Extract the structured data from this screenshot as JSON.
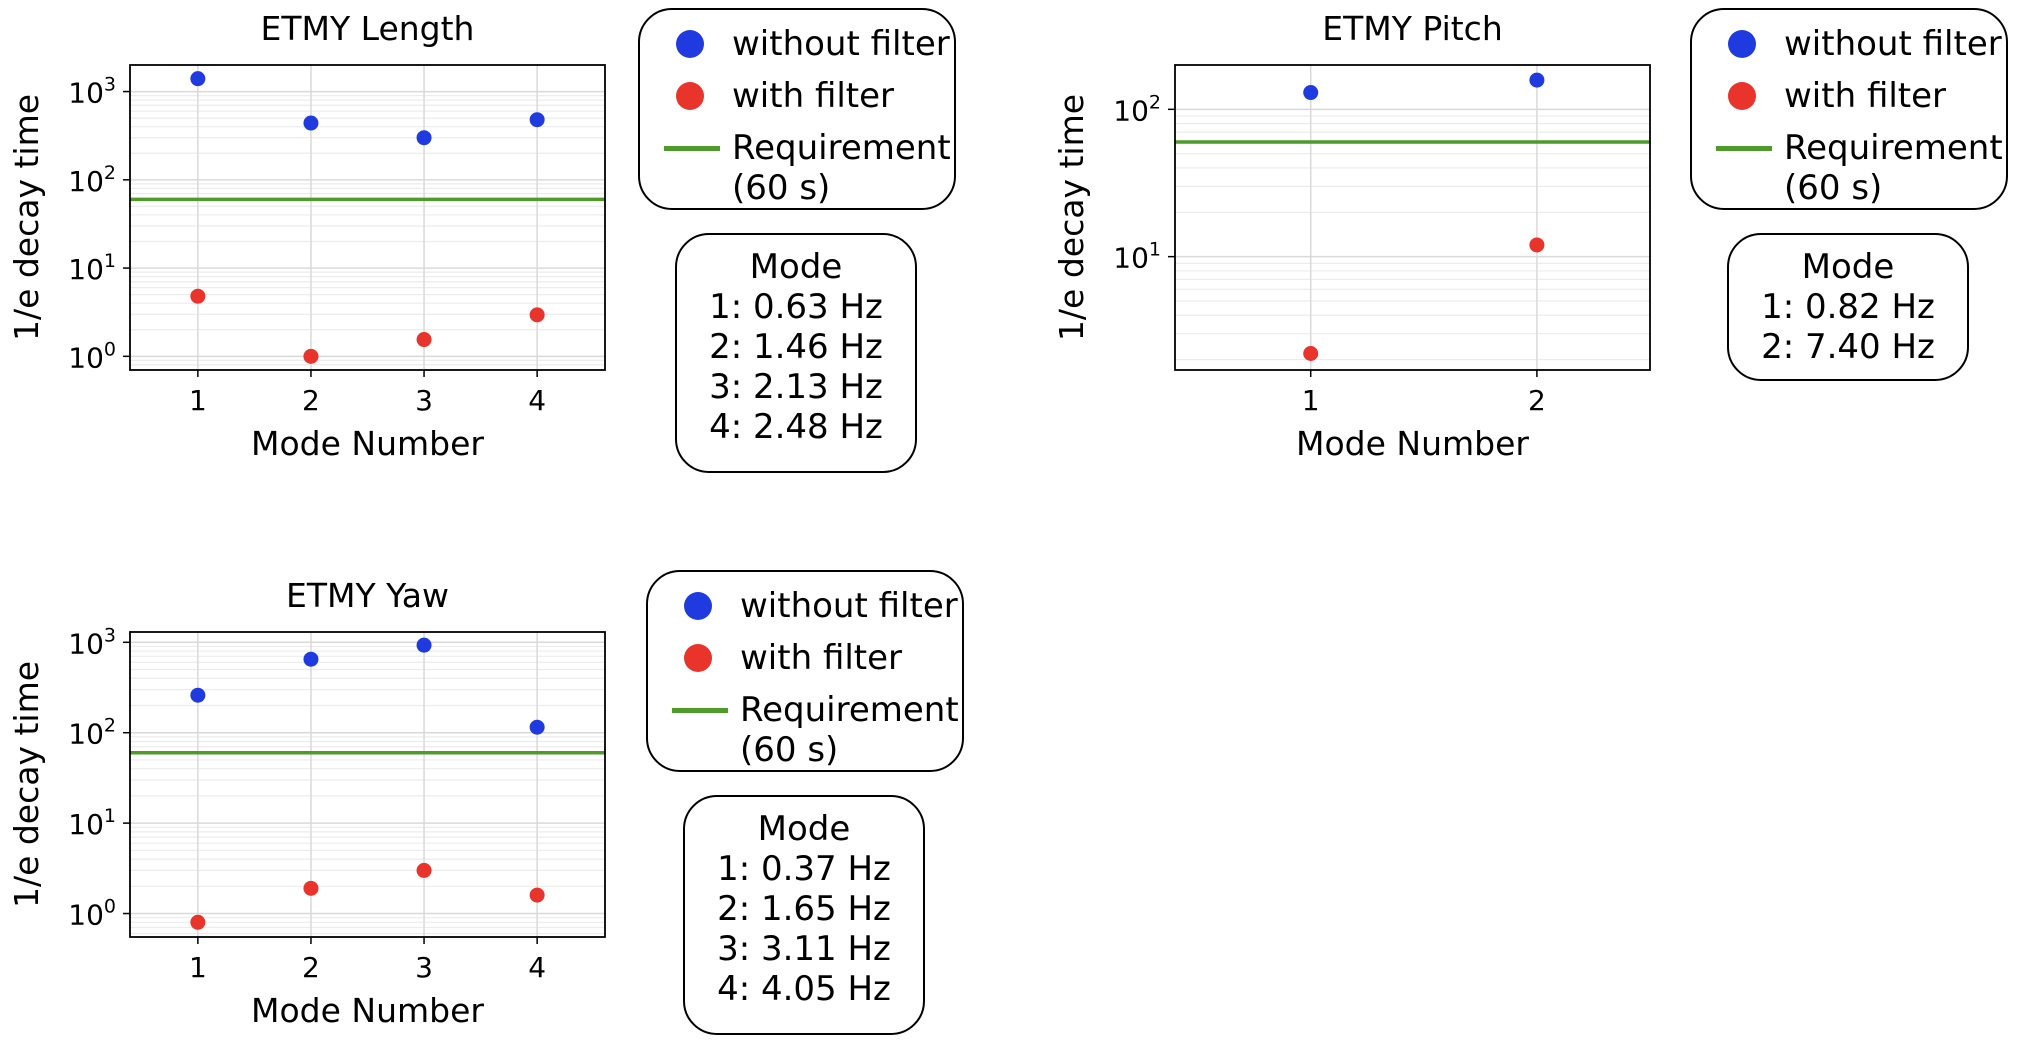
{
  "colors": {
    "without_filter": "#1f3be0",
    "with_filter": "#e8342a",
    "requirement": "#4e9a2a",
    "grid": "#d9d9d9"
  },
  "legend": {
    "without": "without filter",
    "with": "with filter",
    "req_line1": "Requirement",
    "req_line2": "(60 s)"
  },
  "chart_data": [
    {
      "type": "scatter",
      "title": "ETMY Length",
      "xlabel": "Mode Number",
      "ylabel": "1/e decay time",
      "yscale": "log",
      "ylim": [
        0.7,
        2000
      ],
      "xlim": [
        0.4,
        4.6
      ],
      "xticks": [
        1,
        2,
        3,
        4
      ],
      "yticks": [
        1,
        10,
        100,
        1000
      ],
      "ytick_labels": [
        {
          "base": "10",
          "exp": "0"
        },
        {
          "base": "10",
          "exp": "1"
        },
        {
          "base": "10",
          "exp": "2"
        },
        {
          "base": "10",
          "exp": "3"
        }
      ],
      "grid": true,
      "requirement": 60,
      "series": [
        {
          "name": "without filter",
          "x": [
            1,
            2,
            3,
            4
          ],
          "y": [
            1400,
            440,
            300,
            480
          ]
        },
        {
          "name": "with filter",
          "x": [
            1,
            2,
            3,
            4
          ],
          "y": [
            4.8,
            1.0,
            1.55,
            2.95
          ]
        }
      ],
      "mode_box": {
        "title": "Mode",
        "lines": [
          "1: 0.63 Hz",
          "2: 1.46 Hz",
          "3: 2.13 Hz",
          "4: 2.48 Hz"
        ]
      }
    },
    {
      "type": "scatter",
      "title": "ETMY Pitch",
      "xlabel": "Mode Number",
      "ylabel": "1/e decay time",
      "yscale": "log",
      "ylim": [
        1.7,
        200
      ],
      "xlim": [
        0.4,
        2.5
      ],
      "xticks": [
        1,
        2
      ],
      "yticks": [
        10,
        100
      ],
      "ytick_labels": [
        {
          "base": "10",
          "exp": "1"
        },
        {
          "base": "10",
          "exp": "2"
        }
      ],
      "grid": true,
      "requirement": 60,
      "series": [
        {
          "name": "without filter",
          "x": [
            1,
            2
          ],
          "y": [
            130,
            158
          ]
        },
        {
          "name": "with filter",
          "x": [
            1,
            2
          ],
          "y": [
            2.2,
            12
          ]
        }
      ],
      "mode_box": {
        "title": "Mode",
        "lines": [
          "1: 0.82 Hz",
          "2: 7.40 Hz"
        ]
      }
    },
    {
      "type": "scatter",
      "title": "ETMY Yaw",
      "xlabel": "Mode Number",
      "ylabel": "1/e decay time",
      "yscale": "log",
      "ylim": [
        0.55,
        1300
      ],
      "xlim": [
        0.4,
        4.6
      ],
      "xticks": [
        1,
        2,
        3,
        4
      ],
      "yticks": [
        1,
        10,
        100,
        1000
      ],
      "ytick_labels": [
        {
          "base": "10",
          "exp": "0"
        },
        {
          "base": "10",
          "exp": "1"
        },
        {
          "base": "10",
          "exp": "2"
        },
        {
          "base": "10",
          "exp": "3"
        }
      ],
      "grid": true,
      "requirement": 60,
      "series": [
        {
          "name": "without filter",
          "x": [
            1,
            2,
            3,
            4
          ],
          "y": [
            260,
            650,
            930,
            115
          ]
        },
        {
          "name": "with filter",
          "x": [
            1,
            2,
            3,
            4
          ],
          "y": [
            0.8,
            1.9,
            3.0,
            1.6
          ]
        }
      ],
      "mode_box": {
        "title": "Mode",
        "lines": [
          "1: 0.37 Hz",
          "2: 1.65 Hz",
          "3: 3.11 Hz",
          "4: 4.05 Hz"
        ]
      }
    }
  ]
}
